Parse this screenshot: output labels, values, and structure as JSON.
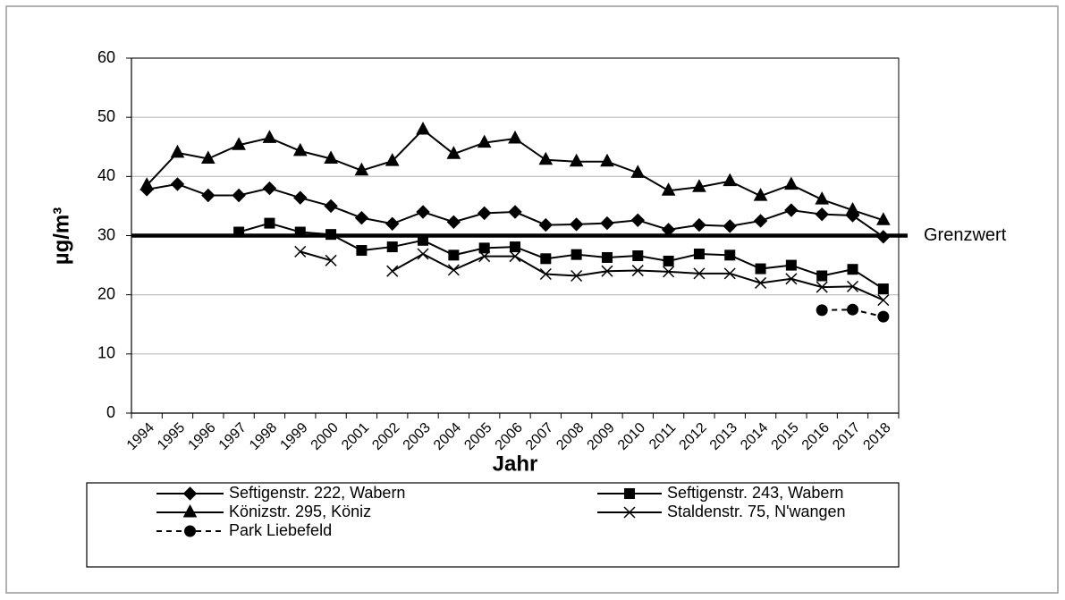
{
  "chart_data": {
    "type": "line",
    "x_label": "Jahr",
    "y_label": "µg/m³",
    "categories": [
      "1994",
      "1995",
      "1996",
      "1997",
      "1998",
      "1999",
      "2000",
      "2001",
      "2002",
      "2003",
      "2004",
      "2005",
      "2006",
      "2007",
      "2008",
      "2009",
      "2010",
      "2011",
      "2012",
      "2013",
      "2014",
      "2015",
      "2016",
      "2017",
      "2018"
    ],
    "series": [
      {
        "name": "Seftigenstr. 222, Wabern",
        "color": "#000000",
        "marker": "diamond",
        "dashed": false,
        "values": [
          37.8,
          38.7,
          36.8,
          36.8,
          38.0,
          36.4,
          35.0,
          33.0,
          32.0,
          34.0,
          32.3,
          33.8,
          34.0,
          31.8,
          31.9,
          32.1,
          32.6,
          31.0,
          31.8,
          31.6,
          32.5,
          34.3,
          33.6,
          33.4,
          29.8
        ]
      },
      {
        "name": "Seftigenstr. 243, Wabern",
        "color": "#000000",
        "marker": "square",
        "dashed": false,
        "values": [
          null,
          null,
          null,
          30.6,
          32.1,
          30.6,
          30.2,
          27.5,
          28.1,
          29.2,
          26.7,
          27.9,
          28.1,
          26.1,
          26.8,
          26.3,
          26.6,
          25.7,
          26.9,
          26.7,
          24.4,
          25.0,
          23.2,
          24.3,
          21.0
        ]
      },
      {
        "name": "Könizstr. 295, Köniz",
        "color": "#000000",
        "marker": "triangle",
        "dashed": false,
        "values": [
          38.5,
          44.0,
          43.0,
          45.3,
          46.5,
          44.3,
          43.0,
          41.0,
          42.6,
          47.9,
          43.8,
          45.7,
          46.4,
          42.8,
          42.5,
          42.5,
          40.6,
          37.6,
          38.2,
          39.2,
          36.7,
          38.6,
          36.1,
          34.3,
          32.6
        ]
      },
      {
        "name": "Staldenstr. 75, N'wangen",
        "color": "#000000",
        "marker": "x",
        "dashed": false,
        "values": [
          null,
          null,
          null,
          null,
          null,
          27.3,
          25.8,
          null,
          24.0,
          26.9,
          24.2,
          26.5,
          26.5,
          23.5,
          23.2,
          24.0,
          24.1,
          23.9,
          23.6,
          23.6,
          22.0,
          22.7,
          21.3,
          21.4,
          19.1
        ]
      },
      {
        "name": "Park Liebefeld",
        "color": "#000000",
        "marker": "circle",
        "dashed": true,
        "values": [
          null,
          null,
          null,
          null,
          null,
          null,
          null,
          null,
          null,
          null,
          null,
          null,
          null,
          null,
          null,
          null,
          null,
          null,
          null,
          null,
          null,
          null,
          17.4,
          17.5,
          16.3
        ]
      }
    ],
    "limit": {
      "value": 30,
      "label": "Grenzwert"
    },
    "ylim": [
      0,
      60
    ],
    "yticks": [
      0,
      10,
      20,
      30,
      40,
      50,
      60
    ],
    "grid": true,
    "legend": "bottom"
  }
}
